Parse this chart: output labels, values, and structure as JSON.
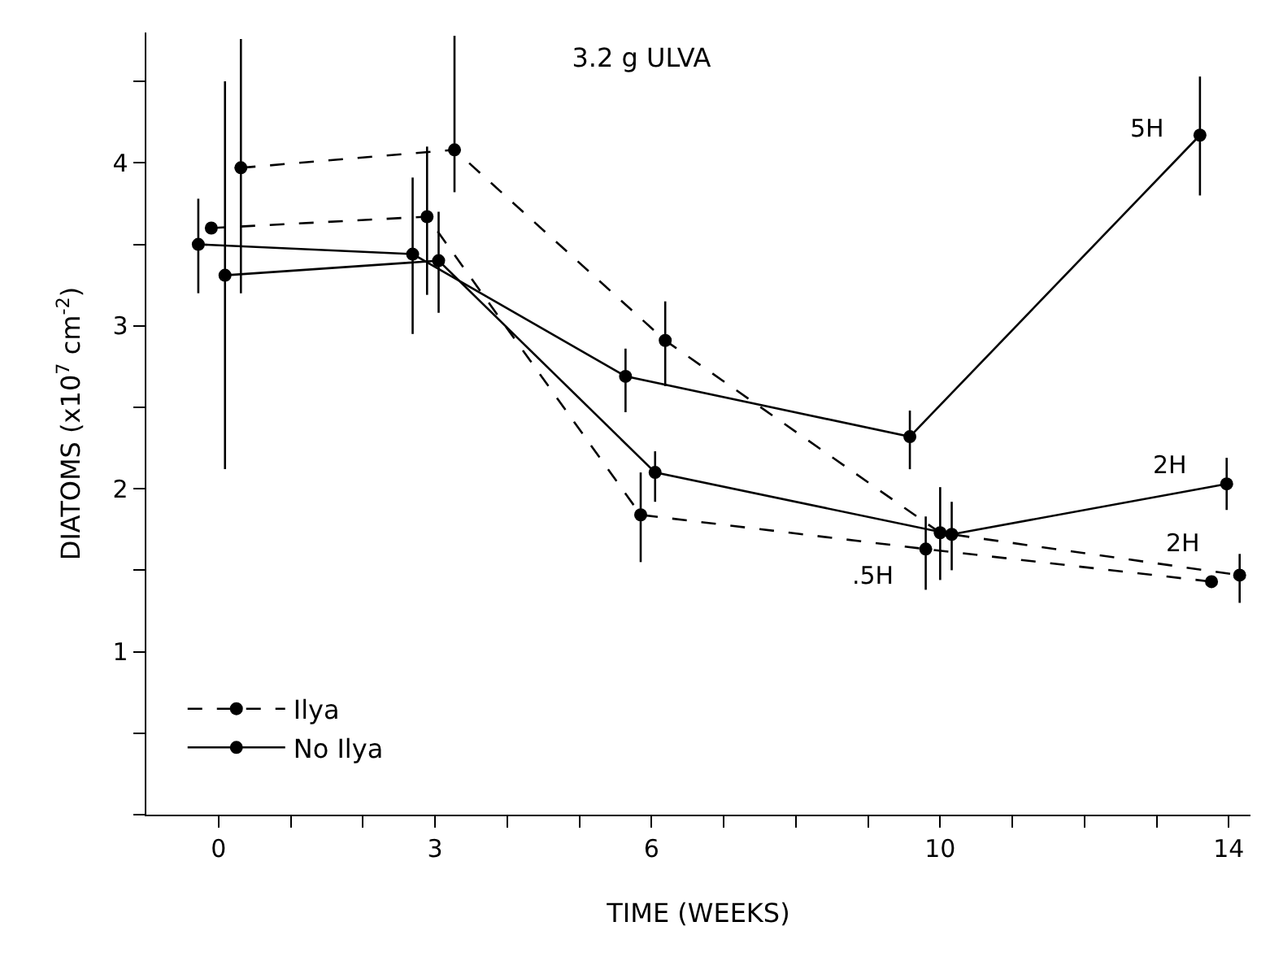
{
  "chart_data": {
    "type": "line",
    "title": "3.2 g ULVA",
    "xlabel": "TIME (WEEKS)",
    "ylabel": "DIATOMS (x10$^{7}$ cm$^{-2}$)",
    "xlim": [
      -1.0,
      14.3
    ],
    "ylim": [
      0,
      4.8
    ],
    "xticks": [
      0,
      {
        "value": 1,
        "label": null
      },
      {
        "value": 2,
        "label": null
      },
      3,
      {
        "value": 4,
        "label": null
      },
      {
        "value": 5,
        "label": null
      },
      6,
      {
        "value": 7,
        "label": null
      },
      {
        "value": 8,
        "label": null
      },
      {
        "value": 9,
        "label": null
      },
      10,
      {
        "value": 11,
        "label": null
      },
      {
        "value": 12,
        "label": null
      },
      {
        "value": 13,
        "label": null
      },
      14
    ],
    "yticks": [
      {
        "value": 0,
        "label": null
      },
      {
        "value": 0.5,
        "label": null
      },
      1,
      {
        "value": 1.5,
        "label": null
      },
      2,
      {
        "value": 2.5,
        "label": null
      },
      3,
      {
        "value": 3.5,
        "label": null
      },
      4,
      {
        "value": 4.5,
        "label": null
      }
    ],
    "legend": "bottom left",
    "marker": "circle",
    "series": [
      {
        "name": "Ilya",
        "color": "#000000",
        "line_style": "dashed",
        "x": [
          0.31,
          3.27,
          6.19,
          10.0,
          14.15
        ],
        "values": [
          3.97,
          4.08,
          2.91,
          1.73,
          1.47
        ],
        "errors": [
          [
            3.2,
            4.76
          ],
          [
            3.82,
            4.78
          ],
          [
            2.63,
            3.15
          ],
          [
            1.44,
            2.01
          ],
          [
            1.3,
            1.6
          ]
        ]
      },
      {
        "color": "#000000",
        "line_style": "dashed",
        "x": [
          -0.1,
          2.89,
          5.85,
          9.8,
          13.76
        ],
        "values": [
          3.6,
          3.67,
          1.84,
          1.63,
          1.43
        ],
        "errors": [
          null,
          [
            3.19,
            4.1
          ],
          [
            1.55,
            2.1
          ],
          [
            1.38,
            1.83
          ],
          null
        ]
      },
      {
        "name": "No Ilya",
        "color": "#000000",
        "line_style": "solid",
        "x": [
          -0.28,
          2.69,
          5.64,
          9.58,
          13.6
        ],
        "values": [
          3.5,
          3.44,
          2.69,
          2.32,
          4.17
        ],
        "errors": [
          [
            3.2,
            3.78
          ],
          [
            2.95,
            3.91
          ],
          [
            2.47,
            2.86
          ],
          [
            2.12,
            2.48
          ],
          [
            3.8,
            4.53
          ]
        ]
      },
      {
        "color": "#000000",
        "line_style": "solid",
        "x": [
          0.09,
          3.05,
          6.05,
          10.16,
          13.97
        ],
        "values": [
          3.31,
          3.4,
          2.1,
          1.72,
          2.03
        ],
        "errors": [
          [
            2.12,
            4.5
          ],
          [
            3.08,
            3.7
          ],
          [
            1.92,
            2.23
          ],
          [
            1.5,
            1.92
          ],
          [
            1.87,
            2.19
          ]
        ]
      }
    ],
    "annotations": [
      {
        "text": "5H",
        "x": 13.6,
        "y": 4.17
      },
      {
        "text": "2H",
        "x": 13.97,
        "y": 2.03
      },
      {
        "text": "2H",
        "x": 14.15,
        "y": 1.47
      },
      {
        "text": ".5H",
        "x": 9.8,
        "y": 1.63
      }
    ]
  }
}
